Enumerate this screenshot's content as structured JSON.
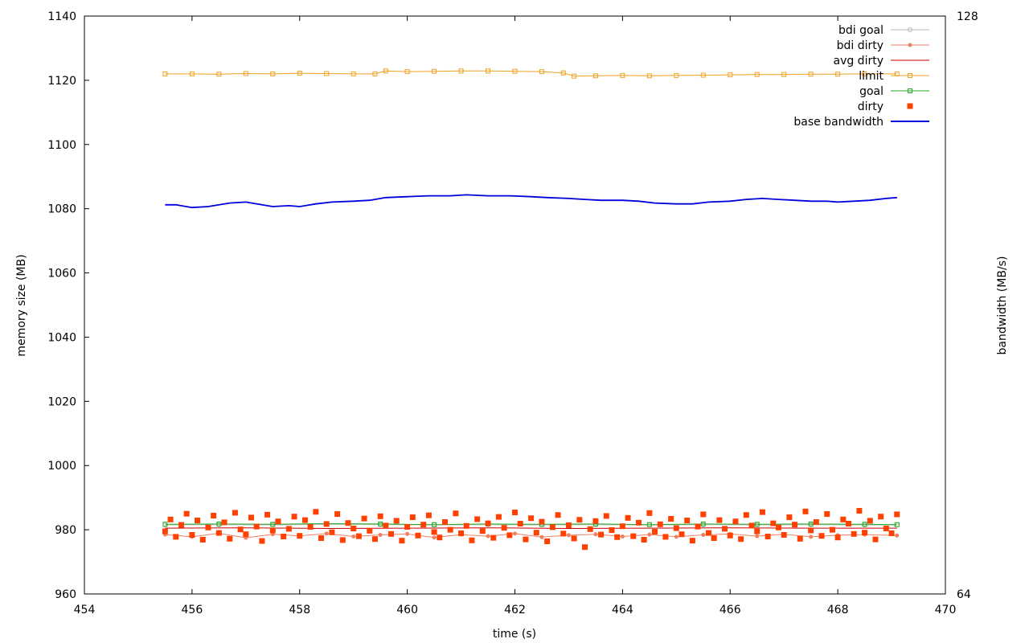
{
  "chart_data": {
    "type": "line",
    "xlabel": "time (s)",
    "ylabel": "memory size (MB)",
    "y2label": "bandwidth (MB/s)",
    "xlim": [
      454,
      470
    ],
    "ylim": [
      960,
      1140
    ],
    "y2lim": [
      64,
      128
    ],
    "xticks": [
      454,
      456,
      458,
      460,
      462,
      464,
      466,
      468,
      470
    ],
    "yticks": [
      960,
      980,
      1000,
      1020,
      1040,
      1060,
      1080,
      1100,
      1120,
      1140
    ],
    "y2ticks": [
      64,
      128
    ],
    "grid": false,
    "legend_position": "top-right",
    "series": [
      {
        "name": "bdi goal",
        "color": "#b8b8b8",
        "style": "line-circle",
        "axis": "y",
        "x": [
          455.5,
          456.5,
          457.5,
          458.5,
          459.5,
          460.5,
          461.5,
          462.5,
          463.5,
          464.5,
          465.5,
          466.5,
          467.5,
          468.5,
          469.1
        ],
        "values": [
          981.5,
          981.6,
          981.5,
          981.7,
          981.6,
          981.5,
          981.6,
          981.5,
          981.6,
          981.5,
          981.6,
          981.5,
          981.6,
          981.5,
          981.5
        ]
      },
      {
        "name": "bdi dirty",
        "color": "#f08060",
        "style": "line-dot",
        "axis": "y",
        "x": [
          455.5,
          456.0,
          456.5,
          457.0,
          457.5,
          458.0,
          458.5,
          459.0,
          459.5,
          460.0,
          460.5,
          461.0,
          461.5,
          462.0,
          462.5,
          463.0,
          463.5,
          464.0,
          464.5,
          465.0,
          465.5,
          466.0,
          466.5,
          467.0,
          467.5,
          468.0,
          468.5,
          469.1
        ],
        "values": [
          978.5,
          977.8,
          978.9,
          977.5,
          978.6,
          978.1,
          978.8,
          977.9,
          978.4,
          978.7,
          977.6,
          978.5,
          978.0,
          978.8,
          977.7,
          978.3,
          978.6,
          977.9,
          978.5,
          977.8,
          978.4,
          978.7,
          978.0,
          978.6,
          977.8,
          978.3,
          978.5,
          978.2
        ]
      },
      {
        "name": "avg dirty",
        "color": "#cc0000",
        "style": "line",
        "axis": "y",
        "x": [
          455.5,
          457.0,
          458.5,
          460.0,
          461.5,
          463.0,
          464.5,
          466.0,
          467.5,
          469.1
        ],
        "values": [
          980.5,
          980.6,
          980.4,
          980.5,
          980.6,
          980.4,
          980.5,
          980.6,
          980.5,
          980.5
        ]
      },
      {
        "name": "limit",
        "color": "#f0a020",
        "style": "line-square",
        "axis": "y",
        "x": [
          455.5,
          456.0,
          456.5,
          457.0,
          457.5,
          458.0,
          458.5,
          459.0,
          459.4,
          459.6,
          460.0,
          460.5,
          461.0,
          461.5,
          462.0,
          462.5,
          462.9,
          463.1,
          463.5,
          464.0,
          464.5,
          465.0,
          465.5,
          466.0,
          466.5,
          467.0,
          467.5,
          468.0,
          468.5,
          469.1
        ],
        "values": [
          1122.0,
          1122.0,
          1121.9,
          1122.1,
          1122.0,
          1122.2,
          1122.1,
          1122.0,
          1122.0,
          1122.9,
          1122.7,
          1122.8,
          1122.9,
          1122.9,
          1122.8,
          1122.7,
          1122.3,
          1121.3,
          1121.4,
          1121.5,
          1121.4,
          1121.5,
          1121.6,
          1121.7,
          1121.8,
          1121.8,
          1121.9,
          1121.9,
          1122.0,
          1122.0
        ]
      },
      {
        "name": "goal",
        "color": "#22aa22",
        "style": "line-square",
        "axis": "y",
        "x": [
          455.5,
          456.5,
          457.5,
          458.5,
          459.5,
          460.5,
          461.5,
          462.5,
          463.5,
          464.5,
          465.5,
          466.5,
          467.5,
          468.5,
          469.1
        ],
        "values": [
          981.7,
          981.8,
          981.7,
          981.9,
          981.8,
          981.6,
          981.8,
          981.7,
          981.8,
          981.6,
          981.8,
          981.7,
          981.8,
          981.7,
          981.6
        ]
      },
      {
        "name": "dirty",
        "color": "#ff4000",
        "style": "points-square",
        "axis": "y",
        "x": [
          455.5,
          455.6,
          455.7,
          455.8,
          455.9,
          456.0,
          456.1,
          456.2,
          456.3,
          456.4,
          456.5,
          456.6,
          456.7,
          456.8,
          456.9,
          457.0,
          457.1,
          457.2,
          457.3,
          457.4,
          457.5,
          457.6,
          457.7,
          457.8,
          457.9,
          458.0,
          458.1,
          458.2,
          458.3,
          458.4,
          458.5,
          458.6,
          458.7,
          458.8,
          458.9,
          459.0,
          459.1,
          459.2,
          459.3,
          459.4,
          459.5,
          459.6,
          459.7,
          459.8,
          459.9,
          460.0,
          460.1,
          460.2,
          460.3,
          460.4,
          460.5,
          460.6,
          460.7,
          460.8,
          460.9,
          461.0,
          461.1,
          461.2,
          461.3,
          461.4,
          461.5,
          461.6,
          461.7,
          461.8,
          461.9,
          462.0,
          462.1,
          462.2,
          462.3,
          462.4,
          462.5,
          462.6,
          462.7,
          462.8,
          462.9,
          463.0,
          463.1,
          463.2,
          463.3,
          463.4,
          463.5,
          463.6,
          463.7,
          463.8,
          463.9,
          464.0,
          464.1,
          464.2,
          464.3,
          464.4,
          464.5,
          464.6,
          464.7,
          464.8,
          464.9,
          465.0,
          465.1,
          465.2,
          465.3,
          465.4,
          465.5,
          465.6,
          465.7,
          465.8,
          465.9,
          466.0,
          466.1,
          466.2,
          466.3,
          466.4,
          466.5,
          466.6,
          466.7,
          466.8,
          466.9,
          467.0,
          467.1,
          467.2,
          467.3,
          467.4,
          467.5,
          467.6,
          467.7,
          467.8,
          467.9,
          468.0,
          468.1,
          468.2,
          468.3,
          468.4,
          468.5,
          468.6,
          468.7,
          468.8,
          468.9,
          469.0,
          469.1
        ],
        "values": [
          979.5,
          983.2,
          977.8,
          981.5,
          985.0,
          978.4,
          982.9,
          976.9,
          980.7,
          984.4,
          979.0,
          982.3,
          977.2,
          985.3,
          980.1,
          978.6,
          983.8,
          981.0,
          976.5,
          984.7,
          979.8,
          982.6,
          977.9,
          980.3,
          984.1,
          978.1,
          983.0,
          980.9,
          985.6,
          977.4,
          981.8,
          979.2,
          984.9,
          976.8,
          982.1,
          980.4,
          978.0,
          983.5,
          979.7,
          977.1,
          984.2,
          981.3,
          978.7,
          982.8,
          976.6,
          980.9,
          983.9,
          978.2,
          981.6,
          984.5,
          979.3,
          977.6,
          982.4,
          980.0,
          985.1,
          978.9,
          981.2,
          976.7,
          983.3,
          979.6,
          982.0,
          977.5,
          984.0,
          980.6,
          978.3,
          985.4,
          981.9,
          977.0,
          983.6,
          979.1,
          982.5,
          976.4,
          980.8,
          984.6,
          978.8,
          981.4,
          977.3,
          983.1,
          974.6,
          980.2,
          982.7,
          978.5,
          984.3,
          979.9,
          977.7,
          981.1,
          983.7,
          978.0,
          982.2,
          976.9,
          985.2,
          979.4,
          981.7,
          977.8,
          983.4,
          980.5,
          978.6,
          982.9,
          976.6,
          981.0,
          984.8,
          979.0,
          977.4,
          983.0,
          980.3,
          978.2,
          982.6,
          977.1,
          984.6,
          981.3,
          979.5,
          985.5,
          977.9,
          982.0,
          980.7,
          978.4,
          983.9,
          981.6,
          977.2,
          985.7,
          979.8,
          982.4,
          978.1,
          984.9,
          980.0,
          977.6,
          983.2,
          981.9,
          978.7,
          985.9,
          979.1,
          982.8,
          977.0,
          984.1,
          980.4,
          978.9,
          984.8
        ]
      },
      {
        "name": "base bandwidth",
        "color": "#0000dd",
        "style": "line",
        "axis": "y2",
        "x": [
          455.5,
          455.7,
          456.0,
          456.3,
          456.7,
          457.0,
          457.3,
          457.5,
          457.8,
          458.0,
          458.3,
          458.6,
          459.0,
          459.3,
          459.6,
          460.0,
          460.4,
          460.8,
          461.1,
          461.5,
          461.9,
          462.3,
          462.6,
          463.0,
          463.3,
          463.6,
          464.0,
          464.3,
          464.6,
          465.0,
          465.3,
          465.6,
          466.0,
          466.3,
          466.6,
          466.9,
          467.2,
          467.5,
          467.8,
          468.0,
          468.3,
          468.6,
          468.9,
          469.1
        ],
        "values": [
          107.1,
          107.1,
          106.8,
          106.9,
          107.3,
          107.4,
          107.1,
          106.9,
          107.0,
          106.9,
          107.2,
          107.4,
          107.5,
          107.6,
          107.9,
          108.0,
          108.1,
          108.1,
          108.2,
          108.1,
          108.1,
          108.0,
          107.9,
          107.8,
          107.7,
          107.6,
          107.6,
          107.5,
          107.3,
          107.2,
          107.2,
          107.4,
          107.5,
          107.7,
          107.8,
          107.7,
          107.6,
          107.5,
          107.5,
          107.4,
          107.5,
          107.6,
          107.8,
          107.9
        ]
      }
    ]
  }
}
